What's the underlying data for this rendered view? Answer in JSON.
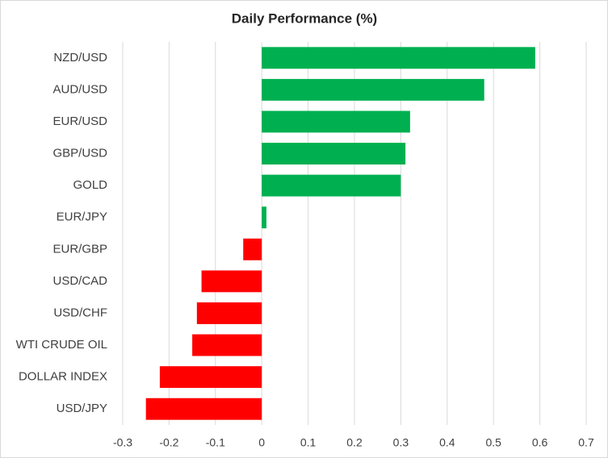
{
  "chart_data": {
    "type": "hbar",
    "title": "Daily Performance (%)",
    "categories": [
      "NZD/USD",
      "AUD/USD",
      "EUR/USD",
      "GBP/USD",
      "GOLD",
      "EUR/JPY",
      "EUR/GBP",
      "USD/CAD",
      "USD/CHF",
      "WTI CRUDE OIL",
      "DOLLAR INDEX",
      "USD/JPY"
    ],
    "values": [
      0.59,
      0.48,
      0.32,
      0.31,
      0.3,
      0.01,
      -0.04,
      -0.13,
      -0.14,
      -0.15,
      -0.22,
      -0.25
    ],
    "colors": [
      "#00b050",
      "#00b050",
      "#00b050",
      "#00b050",
      "#00b050",
      "#00b050",
      "#ff0000",
      "#ff0000",
      "#ff0000",
      "#ff0000",
      "#ff0000",
      "#ff0000"
    ],
    "xlim": [
      -0.3,
      0.7
    ],
    "xticks": [
      -0.3,
      -0.2,
      -0.1,
      0,
      0.1,
      0.2,
      0.3,
      0.4,
      0.5,
      0.6,
      0.7
    ],
    "grid": true
  }
}
